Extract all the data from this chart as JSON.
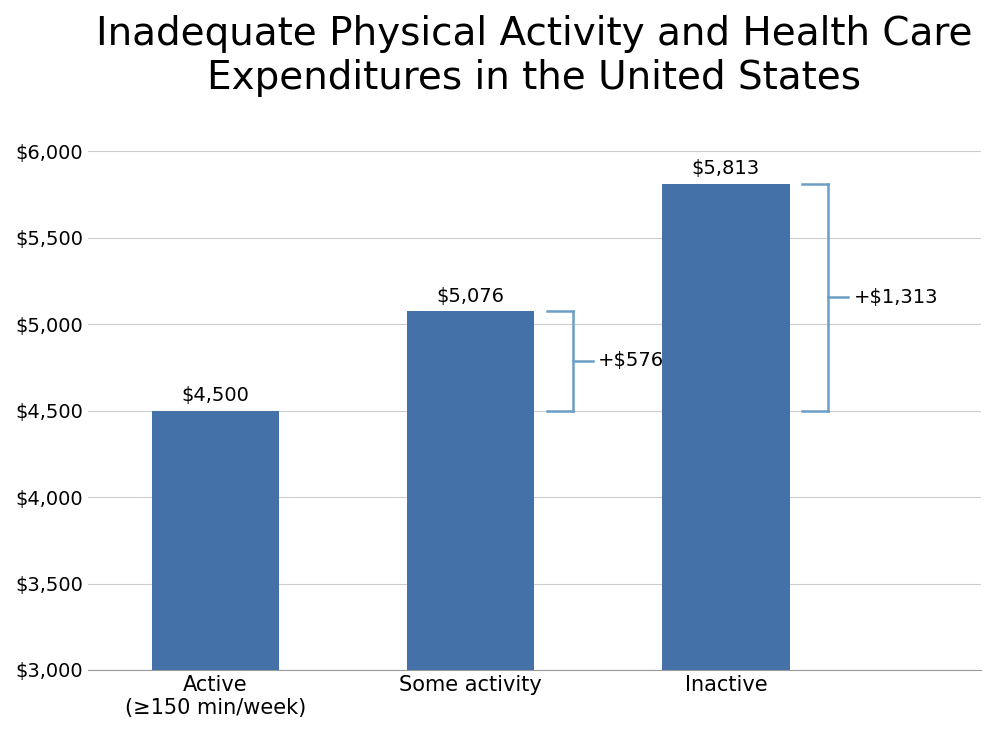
{
  "title": "Inadequate Physical Activity and Health Care\nExpenditures in the United States",
  "categories": [
    "Active\n(≥150 min/week)",
    "Some activity",
    "Inactive"
  ],
  "values": [
    4500,
    5076,
    5813
  ],
  "bar_color": "#4472A8",
  "bar_labels": [
    "$4,500",
    "$5,076",
    "$5,813"
  ],
  "diff_label_1": "+$576",
  "diff_label_2": "+$1,313",
  "ylim": [
    3000,
    6200
  ],
  "yticks": [
    3000,
    3500,
    4000,
    4500,
    5000,
    5500,
    6000
  ],
  "ytick_labels": [
    "$3,000",
    "$3,500",
    "$4,000",
    "$4,500",
    "$5,000",
    "$5,500",
    "$6,000"
  ],
  "background_color": "#ffffff",
  "title_fontsize": 28,
  "bar_label_fontsize": 14,
  "tick_fontsize": 14,
  "xtick_fontsize": 15,
  "bracket_color": "#6B9EC7"
}
